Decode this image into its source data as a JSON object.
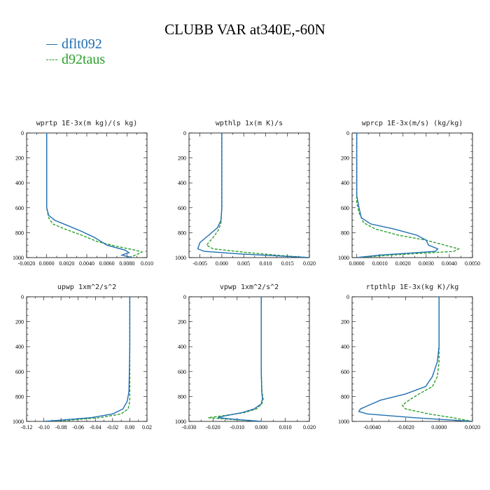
{
  "title": "CLUBB VAR at340E,-60N",
  "legend": [
    {
      "label": "dflt092",
      "color": "#1f6fb2",
      "dash": "none"
    },
    {
      "label": "d92taus",
      "color": "#2ca02c",
      "dash": "4,2"
    }
  ],
  "chart_data": [
    {
      "type": "line",
      "title": "wprtp  1E-3x(m kg)/(s kg)",
      "xlim": [
        -0.002,
        0.01
      ],
      "ylim": [
        1000,
        0
      ],
      "xticks": [
        -0.002,
        0.0,
        0.002,
        0.004,
        0.006,
        0.008,
        0.01
      ],
      "xtick_labels": [
        "-0.0020",
        "0.0000",
        "0.0020",
        "0.0040",
        "0.0060",
        "0.0080",
        "0.010"
      ],
      "yticks": [
        0,
        200,
        400,
        600,
        800,
        1000
      ],
      "ytick_labels": [
        "0",
        "200",
        "400",
        "600",
        "800",
        "1000"
      ],
      "series": [
        {
          "name": "dflt092",
          "points": [
            [
              0.0,
              0
            ],
            [
              0.0,
              200
            ],
            [
              0.0,
              400
            ],
            [
              0.0,
              600
            ],
            [
              0.0002,
              660
            ],
            [
              0.0008,
              700
            ],
            [
              0.002,
              740
            ],
            [
              0.0035,
              790
            ],
            [
              0.0048,
              840
            ],
            [
              0.006,
              900
            ],
            [
              0.0078,
              940
            ],
            [
              0.0082,
              960
            ],
            [
              0.0075,
              980
            ],
            [
              0.0085,
              1000
            ]
          ]
        },
        {
          "name": "d92taus",
          "points": [
            [
              0.0,
              0
            ],
            [
              0.0,
              200
            ],
            [
              0.0,
              400
            ],
            [
              0.0,
              600
            ],
            [
              0.0002,
              680
            ],
            [
              0.0006,
              730
            ],
            [
              0.0018,
              770
            ],
            [
              0.0035,
              820
            ],
            [
              0.005,
              870
            ],
            [
              0.007,
              910
            ],
            [
              0.0088,
              940
            ],
            [
              0.0095,
              955
            ],
            [
              0.009,
              975
            ],
            [
              0.0082,
              1000
            ]
          ]
        }
      ]
    },
    {
      "type": "line",
      "title": "wpthlp  1x(m K)/s",
      "xlim": [
        -0.0075,
        0.02
      ],
      "ylim": [
        1000,
        0
      ],
      "xticks": [
        -0.005,
        0.0,
        0.005,
        0.01,
        0.015,
        0.02
      ],
      "xtick_labels": [
        "-0.005",
        "0.000",
        "0.005",
        "0.010",
        "0.015",
        "0.020"
      ],
      "yticks": [
        0,
        200,
        400,
        600,
        800,
        1000
      ],
      "ytick_labels": [
        "0",
        "200",
        "400",
        "600",
        "800",
        "1000"
      ],
      "series": [
        {
          "name": "dflt092",
          "points": [
            [
              0.0,
              0
            ],
            [
              0.0,
              200
            ],
            [
              0.0,
              400
            ],
            [
              0.0,
              600
            ],
            [
              -0.0002,
              700
            ],
            [
              -0.001,
              760
            ],
            [
              -0.003,
              820
            ],
            [
              -0.005,
              880
            ],
            [
              -0.0055,
              930
            ],
            [
              -0.004,
              950
            ],
            [
              0.004,
              970
            ],
            [
              0.012,
              985
            ],
            [
              0.02,
              1000
            ]
          ]
        },
        {
          "name": "d92taus",
          "points": [
            [
              0.0,
              0
            ],
            [
              0.0,
              200
            ],
            [
              0.0,
              400
            ],
            [
              0.0,
              600
            ],
            [
              -0.0002,
              720
            ],
            [
              -0.0008,
              780
            ],
            [
              -0.002,
              840
            ],
            [
              -0.0035,
              900
            ],
            [
              -0.002,
              930
            ],
            [
              0.006,
              960
            ],
            [
              0.014,
              985
            ],
            [
              0.02,
              1000
            ]
          ]
        }
      ]
    },
    {
      "type": "line",
      "title": "wprcp  1E-3x(m/s) (kg/kg)",
      "xlim": [
        -0.0002,
        0.005
      ],
      "ylim": [
        1000,
        0
      ],
      "xticks": [
        0.0,
        0.001,
        0.002,
        0.003,
        0.004,
        0.005
      ],
      "xtick_labels": [
        "0.0000",
        "0.0010",
        "0.0020",
        "0.0030",
        "0.0040",
        "0.0050"
      ],
      "yticks": [
        0,
        200,
        400,
        600,
        800,
        1000
      ],
      "ytick_labels": [
        "0",
        "200",
        "400",
        "600",
        "800",
        "1000"
      ],
      "series": [
        {
          "name": "dflt092",
          "points": [
            [
              0.0,
              0
            ],
            [
              0.0,
              200
            ],
            [
              0.0,
              400
            ],
            [
              0.0,
              500
            ],
            [
              0.0001,
              600
            ],
            [
              0.0002,
              680
            ],
            [
              0.0006,
              730
            ],
            [
              0.0016,
              770
            ],
            [
              0.0026,
              820
            ],
            [
              0.003,
              860
            ],
            [
              0.0031,
              900
            ],
            [
              0.0035,
              930
            ],
            [
              0.0034,
              950
            ],
            [
              0.001,
              980
            ],
            [
              0.0,
              1000
            ]
          ]
        },
        {
          "name": "d92taus",
          "points": [
            [
              0.0,
              0
            ],
            [
              0.0,
              200
            ],
            [
              0.0,
              400
            ],
            [
              0.0,
              560
            ],
            [
              0.0001,
              640
            ],
            [
              0.0003,
              720
            ],
            [
              0.0008,
              770
            ],
            [
              0.0018,
              820
            ],
            [
              0.003,
              860
            ],
            [
              0.0038,
              900
            ],
            [
              0.0044,
              930
            ],
            [
              0.0042,
              950
            ],
            [
              0.0015,
              980
            ],
            [
              0.0,
              1000
            ]
          ]
        }
      ]
    },
    {
      "type": "line",
      "title": "upwp  1xm^2/s^2",
      "xlim": [
        -0.12,
        0.02
      ],
      "ylim": [
        1000,
        0
      ],
      "xticks": [
        -0.12,
        -0.1,
        -0.08,
        -0.06,
        -0.04,
        -0.02,
        0.0,
        0.02
      ],
      "xtick_labels": [
        "-0.12",
        "-0.10",
        "-0.08",
        "-0.06",
        "-0.04",
        "-0.02",
        "0.00",
        "0.02"
      ],
      "yticks": [
        0,
        200,
        400,
        600,
        800,
        1000
      ],
      "ytick_labels": [
        "0",
        "200",
        "400",
        "600",
        "800",
        "1000"
      ],
      "series": [
        {
          "name": "dflt092",
          "points": [
            [
              0.0,
              0
            ],
            [
              0.0,
              200
            ],
            [
              0.0,
              400
            ],
            [
              -0.0005,
              600
            ],
            [
              -0.001,
              760
            ],
            [
              -0.003,
              840
            ],
            [
              -0.008,
              900
            ],
            [
              -0.02,
              940
            ],
            [
              -0.045,
              970
            ],
            [
              -0.08,
              990
            ],
            [
              -0.1,
              1000
            ]
          ]
        },
        {
          "name": "d92taus",
          "points": [
            [
              0.0,
              0
            ],
            [
              0.0,
              200
            ],
            [
              0.0,
              400
            ],
            [
              0.0,
              600
            ],
            [
              0.0,
              760
            ],
            [
              0.0,
              840
            ],
            [
              -0.002,
              900
            ],
            [
              -0.01,
              940
            ],
            [
              -0.035,
              970
            ],
            [
              -0.07,
              990
            ],
            [
              -0.1,
              1000
            ]
          ]
        }
      ]
    },
    {
      "type": "line",
      "title": "vpwp  1xm^2/s^2",
      "xlim": [
        -0.03,
        0.02
      ],
      "ylim": [
        1000,
        0
      ],
      "xticks": [
        -0.03,
        -0.02,
        -0.01,
        0.0,
        0.01,
        0.02
      ],
      "xtick_labels": [
        "-0.030",
        "-0.020",
        "-0.010",
        "0.000",
        "0.010",
        "0.020"
      ],
      "yticks": [
        0,
        200,
        400,
        600,
        800,
        1000
      ],
      "ytick_labels": [
        "0",
        "200",
        "400",
        "600",
        "800",
        "1000"
      ],
      "series": [
        {
          "name": "dflt092",
          "points": [
            [
              0.0,
              0
            ],
            [
              0.0,
              200
            ],
            [
              0.0,
              400
            ],
            [
              0.0,
              600
            ],
            [
              0.0002,
              760
            ],
            [
              0.0005,
              820
            ],
            [
              0.0,
              860
            ],
            [
              -0.003,
              900
            ],
            [
              -0.008,
              930
            ],
            [
              -0.015,
              955
            ],
            [
              -0.018,
              970
            ],
            [
              -0.01,
              985
            ],
            [
              0.0,
              1000
            ]
          ]
        },
        {
          "name": "d92taus",
          "points": [
            [
              0.0,
              0
            ],
            [
              0.0,
              200
            ],
            [
              0.0,
              400
            ],
            [
              0.0,
              600
            ],
            [
              0.0003,
              760
            ],
            [
              0.0008,
              820
            ],
            [
              0.0002,
              860
            ],
            [
              -0.002,
              900
            ],
            [
              -0.007,
              930
            ],
            [
              -0.016,
              955
            ],
            [
              -0.022,
              970
            ],
            [
              -0.012,
              985
            ],
            [
              0.0,
              1000
            ]
          ]
        }
      ]
    },
    {
      "type": "line",
      "title": "rtpthlp  1E-3x(kg K)/kg",
      "xlim": [
        -0.0052,
        0.002
      ],
      "ylim": [
        1000,
        0
      ],
      "xticks": [
        -0.004,
        -0.002,
        0.0,
        0.002
      ],
      "xtick_labels": [
        "-0.0040",
        "-0.0020",
        "0.0000",
        "0.0020"
      ],
      "yticks": [
        0,
        200,
        400,
        600,
        800,
        1000
      ],
      "ytick_labels": [
        "0",
        "200",
        "400",
        "600",
        "800",
        "1000"
      ],
      "series": [
        {
          "name": "dflt092",
          "points": [
            [
              0.0,
              0
            ],
            [
              0.0,
              200
            ],
            [
              0.0,
              400
            ],
            [
              -0.0001,
              520
            ],
            [
              -0.0004,
              640
            ],
            [
              -0.0008,
              720
            ],
            [
              -0.002,
              780
            ],
            [
              -0.0035,
              830
            ],
            [
              -0.0042,
              870
            ],
            [
              -0.0047,
              900
            ],
            [
              -0.0048,
              920
            ],
            [
              -0.0043,
              940
            ],
            [
              -0.0015,
              970
            ],
            [
              0.002,
              1000
            ]
          ]
        },
        {
          "name": "d92taus",
          "points": [
            [
              0.0,
              0
            ],
            [
              0.0,
              200
            ],
            [
              0.0,
              400
            ],
            [
              0.0,
              520
            ],
            [
              -0.0001,
              640
            ],
            [
              -0.0004,
              720
            ],
            [
              -0.0012,
              780
            ],
            [
              -0.0018,
              830
            ],
            [
              -0.0022,
              870
            ],
            [
              -0.002,
              900
            ],
            [
              -0.0006,
              940
            ],
            [
              0.0008,
              970
            ],
            [
              0.002,
              1000
            ]
          ]
        }
      ]
    }
  ]
}
